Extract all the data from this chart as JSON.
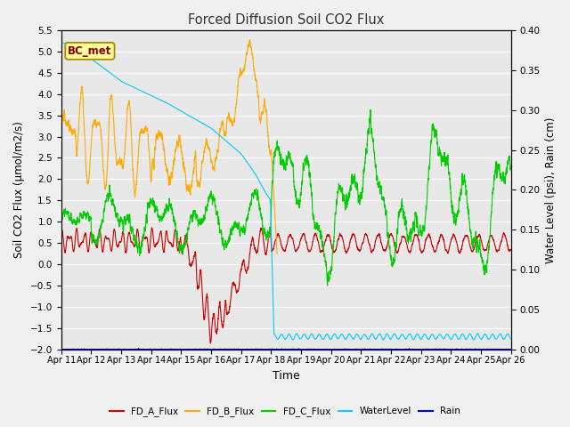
{
  "title": "Forced Diffusion Soil CO2 Flux",
  "xlabel": "Time",
  "ylabel_left": "Soil CO2 Flux (μmol/m2/s)",
  "ylabel_right": "Water Level (psi), Rain (cm)",
  "ylim_left": [
    -2.0,
    5.5
  ],
  "ylim_right": [
    0.0,
    0.4
  ],
  "yticks_left": [
    -2.0,
    -1.5,
    -1.0,
    -0.5,
    0.0,
    0.5,
    1.0,
    1.5,
    2.0,
    2.5,
    3.0,
    3.5,
    4.0,
    4.5,
    5.0,
    5.5
  ],
  "yticks_right": [
    0.0,
    0.05,
    0.1,
    0.15,
    0.2,
    0.25,
    0.3,
    0.35,
    0.4
  ],
  "colors": {
    "FD_A_Flux": "#cc0000",
    "FD_B_Flux": "#ffaa00",
    "FD_C_Flux": "#00cc00",
    "WaterLevel": "#00ccff",
    "Rain": "#0000cc"
  },
  "fig_bg": "#f0f0f0",
  "plot_bg": "#e8e8e8",
  "grid_color": "#ffffff",
  "annotation_text": "BC_met",
  "annotation_fg": "#880000",
  "annotation_bg": "#ffff99",
  "annotation_border": "#aa8800",
  "title_color": "#333333",
  "n_points": 5000,
  "legend_labels": [
    "FD_A_Flux",
    "FD_B_Flux",
    "FD_C_Flux",
    "WaterLevel",
    "Rain"
  ]
}
